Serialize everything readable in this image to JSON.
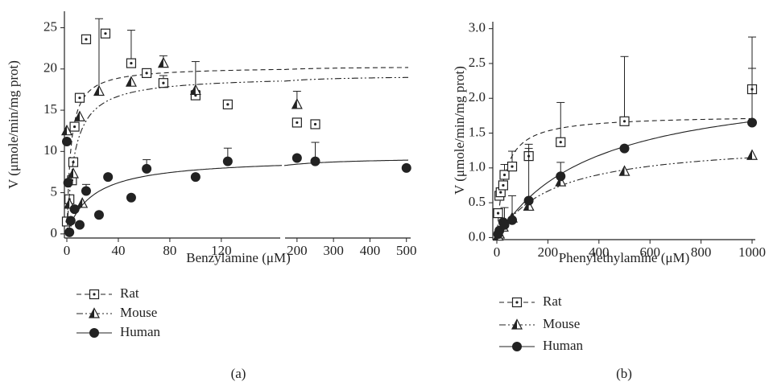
{
  "chart_data": [
    {
      "type": "scatter",
      "panel_label": "(a)",
      "xlabel": "Benzylamine (μM)",
      "ylabel": "V (μmole/min/mg prot)",
      "x_segments": [
        {
          "xlim": [
            0,
            167
          ],
          "xticks": [
            0,
            40,
            80,
            120
          ]
        },
        {
          "xlim": [
            165,
            505
          ],
          "xticks": [
            200,
            300,
            400,
            500
          ]
        }
      ],
      "ylim": [
        -0.5,
        27
      ],
      "yticks": [
        0,
        5,
        10,
        15,
        20,
        25
      ],
      "series": [
        {
          "name": "Rat",
          "color": "#222222",
          "marker": "square-dot",
          "dash": "6,4",
          "x": [
            0,
            2,
            4,
            5,
            6,
            10,
            15,
            30,
            50,
            62,
            75,
            100,
            125,
            200,
            250
          ],
          "values": [
            1.5,
            4.2,
            6.5,
            8.7,
            13,
            16.5,
            23.6,
            24.3,
            20.7,
            19.5,
            18.3,
            16.8,
            15.7,
            13.5,
            13.3
          ],
          "errors": [
            null,
            null,
            null,
            null,
            null,
            null,
            null,
            null,
            4.0,
            null,
            0.9,
            0.6,
            null,
            0.5,
            null
          ],
          "fit": {
            "vmax": 20.3,
            "km": 3
          }
        },
        {
          "name": "Mouse",
          "color": "#222222",
          "marker": "triangle",
          "dash": "8,3,2,3,2,3",
          "x": [
            0,
            2,
            5,
            10,
            12,
            25,
            50,
            75,
            100,
            200
          ],
          "values": [
            12.5,
            3.6,
            7.3,
            14.2,
            3.7,
            17.3,
            18.4,
            20.7,
            17.4,
            15.7
          ],
          "errors": [
            null,
            null,
            null,
            null,
            null,
            8.8,
            null,
            0.9,
            3.5,
            1.6
          ],
          "fit": {
            "vmax": 19.2,
            "km": 6
          }
        },
        {
          "name": "Human",
          "color": "#222222",
          "marker": "circle",
          "dash": "none",
          "x": [
            0,
            1,
            2,
            3,
            6,
            10,
            15,
            25,
            32,
            50,
            62,
            100,
            125,
            200,
            250,
            500
          ],
          "values": [
            11.2,
            6.2,
            0.2,
            1.6,
            3.0,
            1.1,
            5.2,
            2.3,
            6.9,
            4.4,
            7.9,
            6.9,
            8.8,
            9.2,
            8.8,
            8.0
          ],
          "errors": [
            null,
            null,
            null,
            null,
            null,
            null,
            0.8,
            null,
            null,
            null,
            1.1,
            null,
            1.6,
            null,
            2.3,
            null
          ],
          "fit": {
            "vmax": 9.3,
            "km": 20
          }
        }
      ]
    },
    {
      "type": "scatter",
      "panel_label": "(b)",
      "xlabel": "Phenylethylamine (μM)",
      "ylabel": "V (μmole/min/mg prot)",
      "xlim": [
        0,
        1000
      ],
      "xticks": [
        0,
        200,
        400,
        600,
        800,
        1000
      ],
      "ylim": [
        -0.03,
        3.1
      ],
      "yticks": [
        {
          "value": 0,
          "label": "0.0"
        },
        {
          "value": 0.5,
          "label": "0.5"
        },
        {
          "value": 1,
          "label": "1.0"
        },
        {
          "value": 1.5,
          "label": "1.5"
        },
        {
          "value": 2,
          "label": "2.0"
        },
        {
          "value": 2.5,
          "label": "2.5"
        },
        {
          "value": 3,
          "label": "3.0"
        }
      ],
      "series": [
        {
          "name": "Rat",
          "color": "#222222",
          "marker": "square-dot",
          "dash": "6,4",
          "x": [
            5,
            10,
            15,
            25,
            30,
            60,
            125,
            250,
            500,
            1000
          ],
          "values": [
            0.35,
            0.6,
            0.65,
            0.75,
            0.9,
            1.02,
            1.17,
            1.37,
            1.67,
            2.13
          ],
          "errors": [
            null,
            null,
            null,
            null,
            0.15,
            0.22,
            0.17,
            0.57,
            0.93,
            0.75
          ],
          "fit": {
            "vmax": 1.76,
            "km": 30
          }
        },
        {
          "name": "Mouse",
          "color": "#222222",
          "marker": "triangle",
          "dash": "8,3,2,3,2,3",
          "x": [
            5,
            10,
            25,
            60,
            125,
            250,
            500,
            1000
          ],
          "values": [
            0.02,
            0.05,
            0.15,
            0.28,
            0.45,
            0.8,
            0.95,
            1.18
          ],
          "errors": [
            null,
            null,
            null,
            null,
            null,
            null,
            null,
            null
          ],
          "fit": {
            "vmax": 1.4,
            "km": 220
          }
        },
        {
          "name": "Human",
          "color": "#222222",
          "marker": "circle",
          "dash": "none",
          "x": [
            5,
            10,
            25,
            30,
            60,
            125,
            250,
            500,
            1000
          ],
          "values": [
            0.05,
            0.1,
            0.22,
            0.18,
            0.25,
            0.53,
            0.88,
            1.28,
            1.65
          ],
          "errors": [
            null,
            null,
            null,
            0.25,
            0.35,
            0.75,
            0.2,
            null,
            0.78
          ],
          "fit": {
            "vmax": 2.3,
            "km": 380
          }
        }
      ]
    }
  ]
}
